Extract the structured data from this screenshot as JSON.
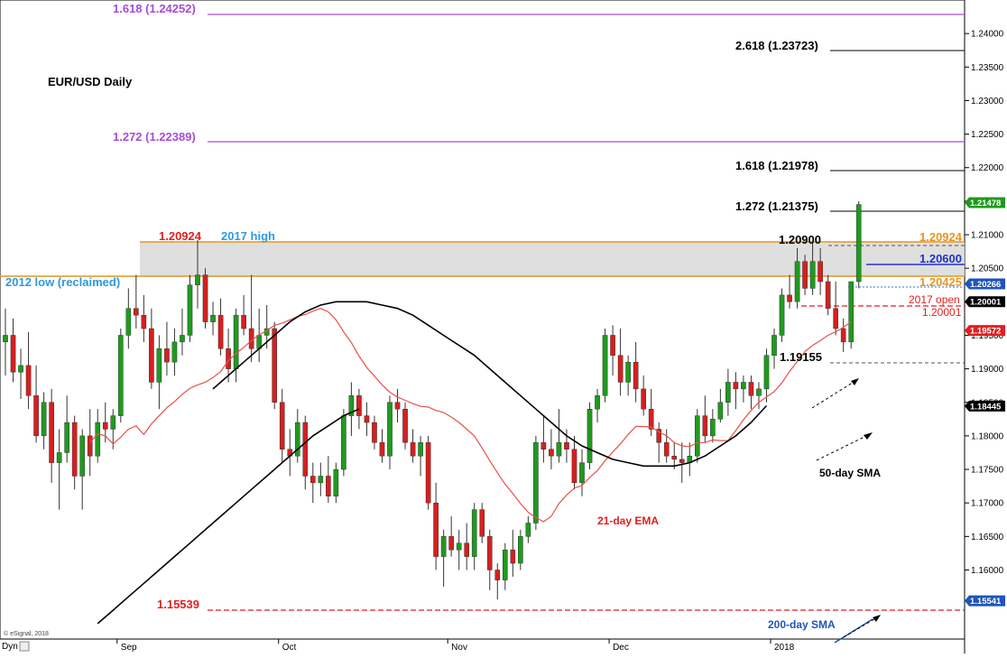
{
  "chart_data": {
    "type": "candlestick",
    "title": "EUR/USD Daily",
    "ylim": [
      1.1497,
      1.245
    ],
    "y_ticks": [
      "1.24000",
      "1.23500",
      "1.23000",
      "1.22500",
      "1.22000",
      "1.21500",
      "1.21000",
      "1.20500",
      "1.20000",
      "1.19500",
      "1.19000",
      "1.18500",
      "1.18000",
      "1.17500",
      "1.17000",
      "1.16500",
      "1.16000"
    ],
    "x_ticks": [
      {
        "label": "Sep",
        "i": 15
      },
      {
        "label": "Oct",
        "i": 36
      },
      {
        "label": "Nov",
        "i": 58
      },
      {
        "label": "Dec",
        "i": 79
      },
      {
        "label": "2018",
        "i": 100
      }
    ],
    "corner_label": "Dyn",
    "watermark": "© eSignal, 2018",
    "grid": false,
    "candles": [
      [
        1.194,
        1.199,
        1.189,
        1.195
      ],
      [
        1.195,
        1.1975,
        1.188,
        1.1895
      ],
      [
        1.1895,
        1.193,
        1.1855,
        1.1905
      ],
      [
        1.1905,
        1.1955,
        1.184,
        1.186
      ],
      [
        1.186,
        1.1905,
        1.179,
        1.18
      ],
      [
        1.18,
        1.1865,
        1.178,
        1.185
      ],
      [
        1.185,
        1.187,
        1.173,
        1.176
      ],
      [
        1.176,
        1.181,
        1.169,
        1.1775
      ],
      [
        1.1775,
        1.186,
        1.176,
        1.182
      ],
      [
        1.182,
        1.183,
        1.172,
        1.174
      ],
      [
        1.174,
        1.181,
        1.169,
        1.18
      ],
      [
        1.18,
        1.184,
        1.174,
        1.177
      ],
      [
        1.177,
        1.184,
        1.176,
        1.182
      ],
      [
        1.182,
        1.185,
        1.179,
        1.181
      ],
      [
        1.181,
        1.184,
        1.178,
        1.183
      ],
      [
        1.183,
        1.196,
        1.182,
        1.195
      ],
      [
        1.195,
        1.202,
        1.193,
        1.199
      ],
      [
        1.199,
        1.204,
        1.196,
        1.198
      ],
      [
        1.198,
        1.201,
        1.194,
        1.196
      ],
      [
        1.196,
        1.199,
        1.187,
        1.188
      ],
      [
        1.188,
        1.195,
        1.184,
        1.193
      ],
      [
        1.193,
        1.197,
        1.189,
        1.191
      ],
      [
        1.191,
        1.196,
        1.189,
        1.194
      ],
      [
        1.194,
        1.199,
        1.192,
        1.195
      ],
      [
        1.195,
        1.204,
        1.194,
        1.2025
      ],
      [
        1.2025,
        1.2092,
        1.199,
        1.204
      ],
      [
        1.204,
        1.205,
        1.196,
        1.197
      ],
      [
        1.197,
        1.2,
        1.195,
        1.198
      ],
      [
        1.198,
        1.2005,
        1.192,
        1.193
      ],
      [
        1.193,
        1.196,
        1.188,
        1.19
      ],
      [
        1.19,
        1.199,
        1.188,
        1.198
      ],
      [
        1.198,
        1.201,
        1.195,
        1.196
      ],
      [
        1.196,
        1.204,
        1.191,
        1.193
      ],
      [
        1.193,
        1.199,
        1.191,
        1.195
      ],
      [
        1.195,
        1.1995,
        1.193,
        1.196
      ],
      [
        1.196,
        1.197,
        1.184,
        1.185
      ],
      [
        1.185,
        1.187,
        1.176,
        1.178
      ],
      [
        1.178,
        1.181,
        1.174,
        1.177
      ],
      [
        1.177,
        1.184,
        1.176,
        1.182
      ],
      [
        1.182,
        1.183,
        1.172,
        1.174
      ],
      [
        1.174,
        1.176,
        1.17,
        1.173
      ],
      [
        1.173,
        1.176,
        1.171,
        1.174
      ],
      [
        1.174,
        1.177,
        1.17,
        1.171
      ],
      [
        1.171,
        1.176,
        1.17,
        1.175
      ],
      [
        1.175,
        1.184,
        1.174,
        1.183
      ],
      [
        1.183,
        1.188,
        1.18,
        1.186
      ],
      [
        1.186,
        1.187,
        1.181,
        1.183
      ],
      [
        1.183,
        1.185,
        1.18,
        1.182
      ],
      [
        1.182,
        1.183,
        1.178,
        1.179
      ],
      [
        1.179,
        1.181,
        1.176,
        1.177
      ],
      [
        1.177,
        1.186,
        1.175,
        1.185
      ],
      [
        1.185,
        1.187,
        1.182,
        1.184
      ],
      [
        1.184,
        1.185,
        1.178,
        1.179
      ],
      [
        1.179,
        1.181,
        1.176,
        1.177
      ],
      [
        1.177,
        1.18,
        1.174,
        1.179
      ],
      [
        1.179,
        1.18,
        1.169,
        1.17
      ],
      [
        1.17,
        1.173,
        1.16,
        1.162
      ],
      [
        1.162,
        1.166,
        1.1575,
        1.165
      ],
      [
        1.165,
        1.168,
        1.162,
        1.163
      ],
      [
        1.163,
        1.166,
        1.16,
        1.164
      ],
      [
        1.164,
        1.167,
        1.16,
        1.162
      ],
      [
        1.162,
        1.17,
        1.16,
        1.169
      ],
      [
        1.169,
        1.17,
        1.164,
        1.165
      ],
      [
        1.165,
        1.166,
        1.157,
        1.16
      ],
      [
        1.16,
        1.161,
        1.1556,
        1.1585
      ],
      [
        1.1585,
        1.164,
        1.157,
        1.163
      ],
      [
        1.163,
        1.166,
        1.159,
        1.161
      ],
      [
        1.161,
        1.166,
        1.16,
        1.165
      ],
      [
        1.165,
        1.168,
        1.164,
        1.167
      ],
      [
        1.167,
        1.18,
        1.166,
        1.179
      ],
      [
        1.179,
        1.183,
        1.176,
        1.178
      ],
      [
        1.178,
        1.181,
        1.175,
        1.177
      ],
      [
        1.177,
        1.184,
        1.176,
        1.179
      ],
      [
        1.179,
        1.181,
        1.176,
        1.178
      ],
      [
        1.178,
        1.18,
        1.172,
        1.173
      ],
      [
        1.173,
        1.178,
        1.171,
        1.176
      ],
      [
        1.176,
        1.185,
        1.175,
        1.184
      ],
      [
        1.184,
        1.187,
        1.182,
        1.186
      ],
      [
        1.186,
        1.196,
        1.185,
        1.195
      ],
      [
        1.195,
        1.1965,
        1.189,
        1.192
      ],
      [
        1.192,
        1.196,
        1.186,
        1.188
      ],
      [
        1.188,
        1.192,
        1.186,
        1.191
      ],
      [
        1.191,
        1.194,
        1.185,
        1.187
      ],
      [
        1.187,
        1.189,
        1.183,
        1.184
      ],
      [
        1.184,
        1.187,
        1.18,
        1.181
      ],
      [
        1.181,
        1.182,
        1.176,
        1.179
      ],
      [
        1.179,
        1.181,
        1.176,
        1.177
      ],
      [
        1.177,
        1.179,
        1.175,
        1.1765
      ],
      [
        1.1765,
        1.179,
        1.173,
        1.176
      ],
      [
        1.176,
        1.179,
        1.174,
        1.177
      ],
      [
        1.177,
        1.184,
        1.176,
        1.183
      ],
      [
        1.183,
        1.186,
        1.179,
        1.18
      ],
      [
        1.18,
        1.184,
        1.179,
        1.1825
      ],
      [
        1.1825,
        1.187,
        1.182,
        1.185
      ],
      [
        1.185,
        1.19,
        1.183,
        1.188
      ],
      [
        1.188,
        1.1895,
        1.184,
        1.187
      ],
      [
        1.187,
        1.189,
        1.185,
        1.188
      ],
      [
        1.188,
        1.189,
        1.184,
        1.186
      ],
      [
        1.186,
        1.188,
        1.184,
        1.187
      ],
      [
        1.187,
        1.193,
        1.185,
        1.192
      ],
      [
        1.192,
        1.196,
        1.19,
        1.195
      ],
      [
        1.195,
        1.202,
        1.194,
        1.201
      ],
      [
        1.201,
        1.204,
        1.199,
        1.2
      ],
      [
        1.2,
        1.208,
        1.199,
        1.206
      ],
      [
        1.206,
        1.207,
        1.201,
        1.202
      ],
      [
        1.202,
        1.209,
        1.201,
        1.206
      ],
      [
        1.206,
        1.208,
        1.201,
        1.203
      ],
      [
        1.203,
        1.204,
        1.198,
        1.199
      ],
      [
        1.199,
        1.203,
        1.195,
        1.196
      ],
      [
        1.196,
        1.1975,
        1.1925,
        1.194
      ],
      [
        1.194,
        1.203,
        1.193,
        1.203
      ],
      [
        1.203,
        1.215,
        1.202,
        1.2145
      ]
    ],
    "series": [
      {
        "name": "21-day EMA",
        "values": [
          1.179,
          1.1803,
          1.18,
          1.1788,
          1.1798,
          1.181,
          1.1815,
          1.1802,
          1.1818,
          1.183,
          1.1842,
          1.1851,
          1.1862,
          1.1871,
          1.1876,
          1.188,
          1.1887,
          1.1896,
          1.1912,
          1.1923,
          1.1932,
          1.1942,
          1.1951,
          1.1957,
          1.1965,
          1.1968,
          1.1973,
          1.1978,
          1.1981,
          1.1986,
          1.199,
          1.1985,
          1.1973,
          1.1955,
          1.1939,
          1.1919,
          1.1902,
          1.1889,
          1.1876,
          1.1865,
          1.1858,
          1.1853,
          1.1848,
          1.1844,
          1.1843,
          1.1838,
          1.1835,
          1.1828,
          1.182,
          1.181,
          1.18,
          1.1782,
          1.1763,
          1.1745,
          1.1728,
          1.1714,
          1.1699,
          1.1686,
          1.1678,
          1.1672,
          1.168,
          1.1699,
          1.1712,
          1.1722,
          1.1726,
          1.1738,
          1.1748,
          1.1763,
          1.1776,
          1.1788,
          1.1802,
          1.1814,
          1.1814,
          1.1813,
          1.1806,
          1.18,
          1.179,
          1.1785,
          1.1784,
          1.179,
          1.179,
          1.1794,
          1.1793,
          1.1793,
          1.1808,
          1.1824,
          1.1838,
          1.185,
          1.1858,
          1.1866,
          1.1879,
          1.1896,
          1.1911,
          1.1926,
          1.1935,
          1.1942,
          1.195,
          1.1955,
          1.1962,
          1.197
        ]
      },
      {
        "name": "50-day SMA",
        "values": [
          1.187,
          1.189,
          1.191,
          1.193,
          1.195,
          1.197,
          1.1985,
          1.1995,
          1.2,
          1.2,
          1.2,
          1.1995,
          1.199,
          1.198,
          1.1965,
          1.195,
          1.1935,
          1.192,
          1.19,
          1.188,
          1.186,
          1.184,
          1.182,
          1.18,
          1.1785,
          1.1775,
          1.1765,
          1.176,
          1.1755,
          1.1755,
          1.1755,
          1.176,
          1.177,
          1.1785,
          1.18,
          1.182,
          1.1845
        ]
      },
      {
        "name": "200-day SMA",
        "values": [
          1.152,
          1.154,
          1.156,
          1.158,
          1.16,
          1.162,
          1.164,
          1.166,
          1.168,
          1.17,
          1.172,
          1.174,
          1.176,
          1.178,
          1.18,
          1.1815,
          1.183,
          1.184
        ]
      }
    ],
    "price_tags": [
      {
        "text": "1.21478",
        "value": 1.21478,
        "color": "#1f9a1f"
      },
      {
        "text": "1.20266",
        "value": 1.20266,
        "color": "#1f55b8"
      },
      {
        "text": "1.20001",
        "value": 1.20001,
        "color": "#000000"
      },
      {
        "text": "1.19572",
        "value": 1.19572,
        "color": "#e02020"
      },
      {
        "text": "1.18445",
        "value": 1.18445,
        "color": "#000000"
      },
      {
        "text": "1.15541",
        "value": 1.15541,
        "color": "#1f55b8"
      }
    ],
    "annotations": {
      "title": "EUR/USD Daily",
      "fib_1618_ext": "1.618 (1.24252)",
      "fib_1272_ext": "1.272 (1.22389)",
      "fib_2618": "2.618 (1.23723)",
      "fib_1618": "1.618 (1.21978)",
      "fib_1272": "1.272 (1.21375)",
      "high_2017_value": "1.20924",
      "high_2017_label": "2017 high",
      "low_2012": "2012 low (reclaimed)",
      "level_120900": "1.20900",
      "level_120924": "1.20924",
      "level_120600": "1.20600",
      "level_120425": "1.20425",
      "open_2017_label": "2017 open",
      "open_2017_value": "1.20001",
      "level_119155": "1.19155",
      "level_115539": "1.15539",
      "ema_label": "21-day EMA",
      "sma50_label": "50-day SMA",
      "sma200_label": "200-day SMA"
    }
  }
}
